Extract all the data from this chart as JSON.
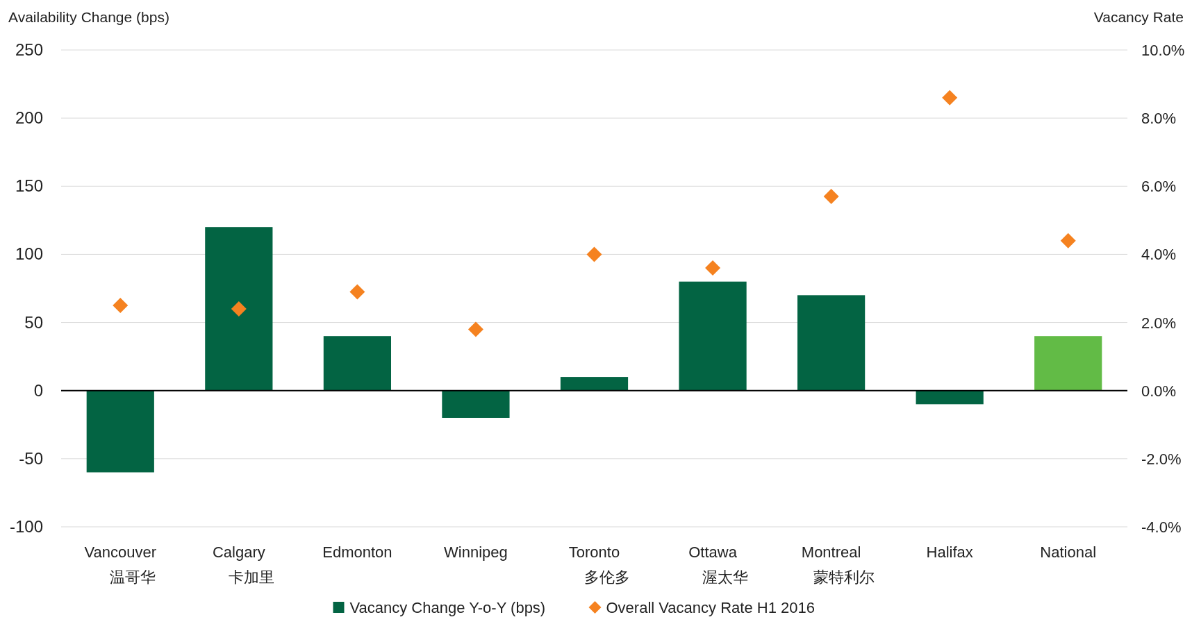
{
  "chart_data": {
    "type": "bar",
    "ylabel": "Availability Change (bps)",
    "y2label": "Vacancy Rate",
    "categories": [
      "Vancouver\n温哥华",
      "Calgary\n卡加里",
      "Edmonton",
      "Winnipeg",
      "Toronto\n多伦多",
      "Ottawa\n渥太华",
      "Montreal\n蒙特利尔",
      "Halifax",
      "National"
    ],
    "series": [
      {
        "name": "Vacancy Change Y-o-Y (bps)",
        "color": "#036443",
        "colors": [
          "#036443",
          "#036443",
          "#036443",
          "#036443",
          "#036443",
          "#036443",
          "#036443",
          "#036443",
          "#62bb46"
        ],
        "values": [
          -60,
          120,
          40,
          -20,
          10,
          80,
          70,
          -10,
          40
        ]
      },
      {
        "name": "Overall Vacancy Rate H1 2016",
        "type": "scatter",
        "axis": "y2",
        "marker": "diamond",
        "color": "#f58220",
        "values": [
          2.5,
          2.4,
          2.9,
          1.8,
          4.0,
          3.6,
          5.7,
          8.6,
          4.4
        ]
      }
    ],
    "ylim": [
      -100,
      250
    ],
    "yticks": [
      -100,
      -50,
      0,
      50,
      100,
      150,
      200,
      250
    ],
    "y2lim": [
      -4,
      10
    ],
    "y2ticks": [
      {
        "value": -4,
        "label": "-4.0%"
      },
      {
        "value": -2,
        "label": "-2.0%"
      },
      {
        "value": 0,
        "label": "0.0%"
      },
      {
        "value": 2,
        "label": "2.0%"
      },
      {
        "value": 4,
        "label": "4.0%"
      },
      {
        "value": 6,
        "label": "6.0%"
      },
      {
        "value": 8,
        "label": "8.0%"
      },
      {
        "value": 10,
        "label": "10.0%"
      }
    ],
    "grid": "y",
    "legend": "bottom"
  }
}
